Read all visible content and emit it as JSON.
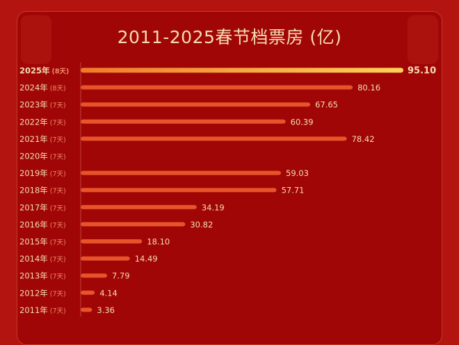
{
  "chart_data": {
    "type": "bar",
    "orientation": "horizontal",
    "title": "2011-2025春节档票房 (亿)",
    "categories": [
      "2025年",
      "2024年",
      "2023年",
      "2022年",
      "2021年",
      "2020年",
      "2019年",
      "2018年",
      "2017年",
      "2016年",
      "2015年",
      "2014年",
      "2013年",
      "2012年",
      "2011年"
    ],
    "durations": [
      "(8天)",
      "(8天)",
      "(7天)",
      "(7天)",
      "(7天)",
      "(7天)",
      "(7天)",
      "(7天)",
      "(7天)",
      "(7天)",
      "(7天)",
      "(7天)",
      "(7天)",
      "(7天)",
      "(7天)"
    ],
    "values": [
      95.1,
      80.16,
      67.65,
      60.39,
      78.42,
      null,
      59.03,
      57.71,
      34.19,
      30.82,
      18.1,
      14.49,
      7.79,
      4.14,
      3.36
    ],
    "value_labels": [
      "95.10",
      "80.16",
      "67.65",
      "60.39",
      "78.42",
      "",
      "59.03",
      "57.71",
      "34.19",
      "30.82",
      "18.10",
      "14.49",
      "7.79",
      "4.14",
      "3.36"
    ],
    "highlight": "2025年",
    "colors": {
      "bar": "#e8542a",
      "highlight_start": "#f07a2a",
      "highlight_end": "#fcd25a",
      "label": "#f6dcb0",
      "duration": "#f08a6a",
      "background": "#a00606"
    }
  }
}
